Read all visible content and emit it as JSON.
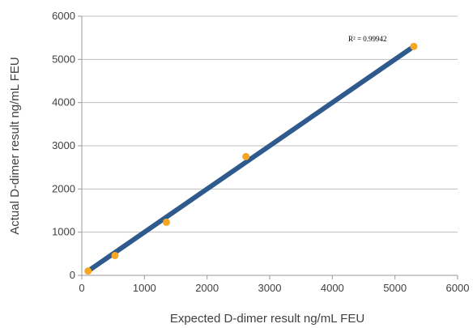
{
  "chart_data": {
    "type": "scatter",
    "title": "",
    "xlabel": "Expected D-dimer result ng/mL FEU",
    "ylabel": "Actual D-dimer result ng/mL FEU",
    "xlim": [
      0,
      6000
    ],
    "ylim": [
      0,
      6000
    ],
    "x_ticks": [
      "0",
      "1000",
      "2000",
      "3000",
      "4000",
      "5000",
      "6000"
    ],
    "y_ticks": [
      "0",
      "1000",
      "2000",
      "3000",
      "4000",
      "5000",
      "6000"
    ],
    "grid": "horizontal",
    "legend": "none",
    "series": [
      {
        "points": [
          {
            "x": 100,
            "y": 100
          },
          {
            "x": 530,
            "y": 460
          },
          {
            "x": 1350,
            "y": 1230
          },
          {
            "x": 2620,
            "y": 2750
          },
          {
            "x": 5300,
            "y": 5300
          }
        ]
      }
    ],
    "trendline": {
      "x_start": 130,
      "x_end": 5250,
      "slope": 1.0,
      "intercept": 0
    },
    "annotation": "R² = 0.99942",
    "colors": {
      "points": "#f5a623",
      "trendline": "#2e5a8e",
      "grid": "#bfbfbf",
      "axis": "#9a9a9a"
    }
  }
}
